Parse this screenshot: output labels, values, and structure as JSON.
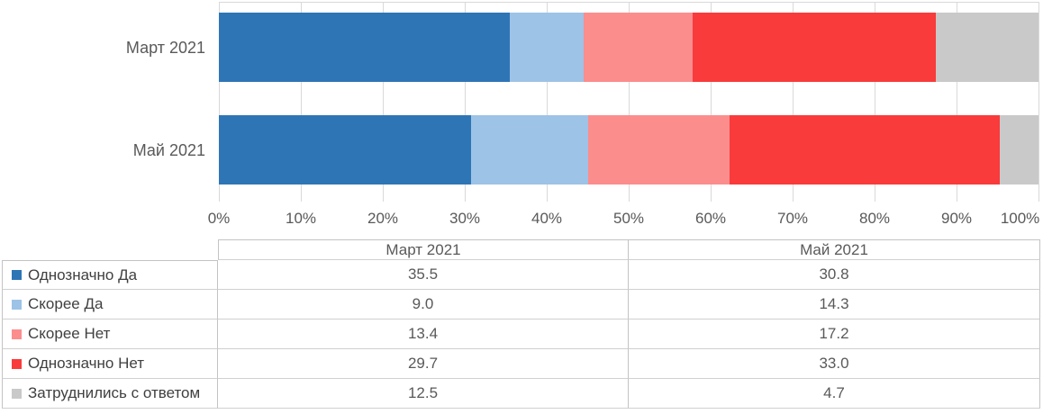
{
  "chart_data": {
    "type": "bar",
    "orientation": "horizontal",
    "stacked": true,
    "categories": [
      "Март 2021",
      "Май 2021"
    ],
    "series": [
      {
        "name": "Однозначно Да",
        "values": [
          35.5,
          30.8
        ],
        "color": "#2E75B6"
      },
      {
        "name": "Скорее Да",
        "values": [
          9.0,
          14.3
        ],
        "color": "#9DC3E6"
      },
      {
        "name": "Скорее Нет",
        "values": [
          13.4,
          17.2
        ],
        "color": "#FC8D8D"
      },
      {
        "name": "Однозначно Нет",
        "values": [
          29.7,
          33.0
        ],
        "color": "#F93B3B"
      },
      {
        "name": "Затруднились с ответом",
        "values": [
          12.5,
          4.7
        ],
        "color": "#C9C9C9"
      }
    ],
    "xlim": [
      0,
      100
    ],
    "x_tick_labels": [
      "0%",
      "10%",
      "20%",
      "30%",
      "40%",
      "50%",
      "60%",
      "70%",
      "80%",
      "90%",
      "100%"
    ],
    "grid": true,
    "legend_position": "data-table-left-column",
    "data_table_shown": true,
    "colors": {
      "gridline": "#D9D9D9",
      "table_border": "#C3C3C3",
      "axis_text": "#595959",
      "series_label_text": "#404040"
    }
  }
}
